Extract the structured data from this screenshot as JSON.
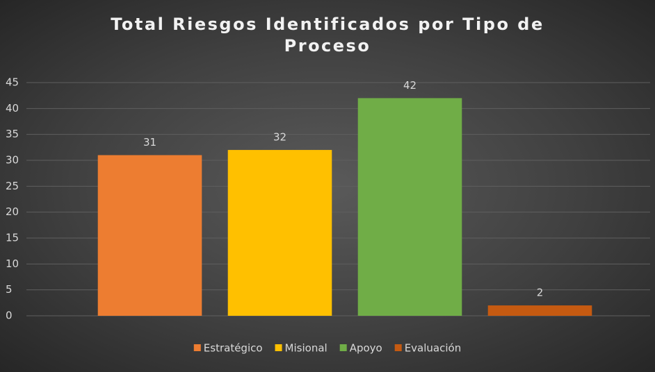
{
  "chart_data": {
    "type": "bar",
    "title": "Total Riesgos Identificados por Tipo de Proceso",
    "categories": [
      "Estratégico",
      "Misional",
      "Apoyo",
      "Evaluación"
    ],
    "values": [
      31,
      32,
      42,
      2
    ],
    "colors": [
      "#ed7d31",
      "#ffc000",
      "#70ad47",
      "#c55a11"
    ],
    "ylim": [
      0,
      45
    ],
    "yticks": [
      0,
      5,
      10,
      15,
      20,
      25,
      30,
      35,
      40,
      45
    ],
    "grid": true,
    "legend": "bottom"
  }
}
